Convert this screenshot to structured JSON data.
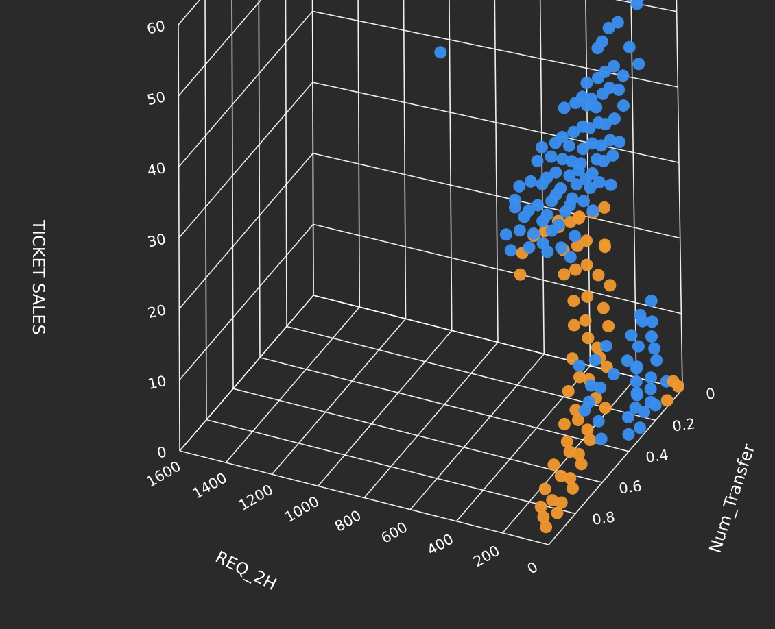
{
  "chart_data": {
    "type": "scatter3d",
    "title": "",
    "axes": {
      "x": {
        "label": "REQ_2H",
        "range": [
          0,
          1600
        ],
        "ticks": [
          0,
          200,
          400,
          600,
          800,
          1000,
          1200,
          1400,
          1600
        ]
      },
      "y": {
        "label": "Num_Transfer",
        "range": [
          0,
          1
        ],
        "ticks": [
          0,
          0.2,
          0.4,
          0.6,
          0.8
        ]
      },
      "z": {
        "label": "TICKET SALES",
        "range": [
          0,
          60
        ],
        "ticks": [
          0,
          10,
          20,
          30,
          40,
          50,
          60
        ]
      }
    },
    "grid": true,
    "legend": "none",
    "colors": {
      "background": "#2a2a2b",
      "grid": "#ffffff",
      "series_blue": "#3a8ef0",
      "series_orange": "#f0982e"
    },
    "series": [
      {
        "color": "#3a8ef0",
        "points": [
          [
            1040,
            0,
            38
          ],
          [
            720,
            0,
            20
          ],
          [
            150,
            0,
            58
          ],
          [
            180,
            0,
            53
          ],
          [
            200,
            0,
            54
          ],
          [
            165,
            0,
            51
          ],
          [
            175,
            0,
            50
          ],
          [
            220,
            0,
            52
          ],
          [
            210,
            0,
            51
          ],
          [
            260,
            0,
            47
          ],
          [
            300,
            0,
            46
          ],
          [
            330,
            0,
            44
          ],
          [
            210,
            0,
            44
          ],
          [
            350,
            0,
            43
          ],
          [
            170,
            0,
            42
          ],
          [
            280,
            0,
            41
          ],
          [
            240,
            0,
            40
          ],
          [
            320,
            0,
            40
          ],
          [
            350,
            0,
            39
          ],
          [
            260,
            0,
            38
          ],
          [
            300,
            0,
            38
          ],
          [
            400,
            0,
            38
          ],
          [
            330,
            0,
            37
          ],
          [
            420,
            0,
            36
          ],
          [
            380,
            0,
            36
          ],
          [
            240,
            0,
            36
          ],
          [
            360,
            0,
            35
          ],
          [
            400,
            0,
            35
          ],
          [
            450,
            0,
            35
          ],
          [
            500,
            0,
            34
          ],
          [
            280,
            0,
            34
          ],
          [
            320,
            0,
            33
          ],
          [
            350,
            0,
            33
          ],
          [
            390,
            0,
            32
          ],
          [
            420,
            0,
            32
          ],
          [
            300,
            0,
            31
          ],
          [
            260,
            0,
            31
          ],
          [
            460,
            0,
            31
          ],
          [
            510,
            0,
            30
          ],
          [
            340,
            0,
            30
          ],
          [
            380,
            0,
            30
          ],
          [
            290,
            0,
            29
          ],
          [
            420,
            0,
            29
          ],
          [
            480,
            0,
            29
          ],
          [
            540,
            0,
            29
          ],
          [
            360,
            0,
            28
          ],
          [
            330,
            0,
            28
          ],
          [
            600,
            0,
            28
          ],
          [
            430,
            0,
            27
          ],
          [
            470,
            0,
            27
          ],
          [
            510,
            0,
            27
          ],
          [
            560,
            0,
            27
          ],
          [
            380,
            0,
            26
          ],
          [
            620,
            0,
            26
          ],
          [
            440,
            0,
            26
          ],
          [
            300,
            0,
            25
          ],
          [
            350,
            0,
            25
          ],
          [
            410,
            0,
            25
          ],
          [
            480,
            0,
            25
          ],
          [
            540,
            0,
            25
          ],
          [
            580,
            0,
            24
          ],
          [
            390,
            0,
            24
          ],
          [
            450,
            0,
            24
          ],
          [
            520,
            0,
            23
          ],
          [
            600,
            0,
            23
          ],
          [
            650,
            0,
            23
          ],
          [
            420,
            0,
            22
          ],
          [
            470,
            0,
            22
          ],
          [
            540,
            0,
            22
          ],
          [
            700,
            0,
            22
          ],
          [
            380,
            0,
            21
          ],
          [
            480,
            0,
            21
          ],
          [
            560,
            0,
            21
          ],
          [
            620,
            0,
            20
          ],
          [
            500,
            0,
            20
          ],
          [
            580,
            0,
            19
          ],
          [
            660,
            0,
            19
          ],
          [
            720,
            0,
            19
          ],
          [
            530,
            0,
            18
          ],
          [
            600,
            0,
            18
          ],
          [
            680,
            0,
            18
          ],
          [
            460,
            0,
            17
          ],
          [
            560,
            0,
            17
          ],
          [
            640,
            0,
            16
          ],
          [
            700,
            0,
            16
          ],
          [
            520,
            0,
            15
          ],
          [
            600,
            0,
            15
          ],
          [
            760,
            0,
            15
          ],
          [
            480,
            0,
            14
          ],
          [
            580,
            0,
            14
          ],
          [
            660,
            0,
            14
          ],
          [
            740,
            0,
            13
          ],
          [
            100,
            0.05,
            12
          ],
          [
            120,
            0.1,
            11
          ],
          [
            80,
            0.08,
            10
          ],
          [
            60,
            0.12,
            9
          ],
          [
            140,
            0.05,
            9
          ],
          [
            100,
            0.15,
            8
          ],
          [
            60,
            0.1,
            7
          ],
          [
            120,
            0.2,
            7
          ],
          [
            40,
            0.12,
            6
          ],
          [
            90,
            0.18,
            6
          ],
          [
            70,
            0.22,
            5
          ],
          [
            30,
            0.18,
            5
          ],
          [
            110,
            0.15,
            5
          ],
          [
            50,
            0.25,
            4
          ],
          [
            20,
            0.2,
            4
          ],
          [
            80,
            0.2,
            3
          ],
          [
            40,
            0.28,
            3
          ],
          [
            60,
            0.3,
            2
          ],
          [
            20,
            0.25,
            2
          ],
          [
            10,
            0.1,
            3
          ],
          [
            0,
            0.2,
            2
          ],
          [
            30,
            0.35,
            1
          ],
          [
            10,
            0.3,
            1
          ],
          [
            50,
            0.15,
            1
          ],
          [
            150,
            0.25,
            6
          ],
          [
            180,
            0.3,
            5
          ],
          [
            200,
            0.35,
            4
          ],
          [
            130,
            0.4,
            3
          ],
          [
            90,
            0.45,
            2
          ],
          [
            160,
            0.1,
            8
          ],
          [
            240,
            0.15,
            7
          ],
          [
            260,
            0.2,
            6
          ],
          [
            300,
            0.25,
            6
          ],
          [
            220,
            0.3,
            5
          ],
          [
            190,
            0.4,
            4
          ]
        ]
      },
      {
        "color": "#f0982e",
        "points": [
          [
            700,
            0,
            10
          ],
          [
            690,
            0,
            13
          ],
          [
            300,
            0.05,
            23
          ],
          [
            350,
            0.05,
            22
          ],
          [
            410,
            0.05,
            21
          ],
          [
            450,
            0.05,
            20
          ],
          [
            500,
            0.05,
            19
          ],
          [
            300,
            0.05,
            18
          ],
          [
            380,
            0.05,
            18
          ],
          [
            420,
            0.05,
            17
          ],
          [
            480,
            0.05,
            16
          ],
          [
            350,
            0.1,
            16
          ],
          [
            300,
            0.1,
            15
          ],
          [
            400,
            0.1,
            15
          ],
          [
            450,
            0.1,
            14
          ],
          [
            250,
            0.1,
            14
          ],
          [
            320,
            0.15,
            13
          ],
          [
            380,
            0.15,
            12
          ],
          [
            250,
            0.15,
            12
          ],
          [
            300,
            0.2,
            11
          ],
          [
            200,
            0.2,
            11
          ],
          [
            350,
            0.2,
            10
          ],
          [
            260,
            0.25,
            10
          ],
          [
            220,
            0.25,
            9
          ],
          [
            180,
            0.3,
            9
          ],
          [
            300,
            0.3,
            8
          ],
          [
            150,
            0.3,
            8
          ],
          [
            240,
            0.35,
            7
          ],
          [
            200,
            0.35,
            7
          ],
          [
            140,
            0.4,
            6
          ],
          [
            260,
            0.4,
            6
          ],
          [
            100,
            0.4,
            5
          ],
          [
            200,
            0.45,
            5
          ],
          [
            160,
            0.5,
            5
          ],
          [
            120,
            0.5,
            4
          ],
          [
            220,
            0.5,
            4
          ],
          [
            80,
            0.55,
            4
          ],
          [
            180,
            0.55,
            3
          ],
          [
            140,
            0.6,
            3
          ],
          [
            100,
            0.6,
            3
          ],
          [
            60,
            0.65,
            3
          ],
          [
            180,
            0.65,
            2
          ],
          [
            120,
            0.7,
            2
          ],
          [
            80,
            0.7,
            2
          ],
          [
            40,
            0.75,
            2
          ],
          [
            160,
            0.75,
            1
          ],
          [
            100,
            0.8,
            1
          ],
          [
            60,
            0.8,
            1
          ],
          [
            120,
            0.85,
            1
          ],
          [
            80,
            0.9,
            1
          ],
          [
            40,
            0.95,
            1
          ],
          [
            20,
            0.9,
            2
          ],
          [
            10,
            0.05,
            2
          ],
          [
            0,
            0.03,
            1
          ],
          [
            20,
            0.08,
            0
          ],
          [
            430,
            0.02,
            20
          ],
          [
            520,
            0.02,
            19
          ],
          [
            560,
            0.05,
            18
          ],
          [
            610,
            0.05,
            17
          ],
          [
            270,
            0.1,
            19
          ]
        ]
      }
    ]
  }
}
